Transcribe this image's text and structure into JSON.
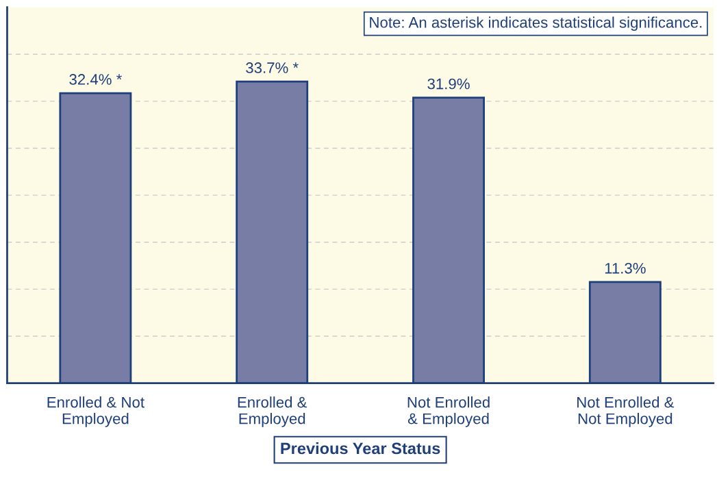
{
  "chart_data": {
    "type": "bar",
    "categories": [
      "Enrolled & Not\nEmployed",
      "Enrolled &\nEmployed",
      "Not Enrolled\n& Employed",
      "Not Enrolled &\nNot Employed"
    ],
    "values": [
      32.4,
      33.7,
      31.9,
      11.3
    ],
    "value_labels": [
      "32.4% *",
      "33.7% *",
      "31.9%",
      "11.3%"
    ],
    "color": "#6f78ad",
    "xlabel": "Previous Year Status",
    "annotations": [
      "Note: An asterisk indicates statistical significance."
    ],
    "ylim": [
      0,
      42
    ],
    "yticks": [
      {
        "value": 5.25,
        "label": null
      },
      {
        "value": 10.5,
        "label": null
      },
      {
        "value": 15.75,
        "label": null
      },
      {
        "value": 21,
        "label": null
      },
      {
        "value": 26.25,
        "label": null
      },
      {
        "value": 31.5,
        "label": null
      },
      {
        "value": 36.75,
        "label": null
      }
    ],
    "tick_labels": "x",
    "grid": "y",
    "legend": false
  }
}
